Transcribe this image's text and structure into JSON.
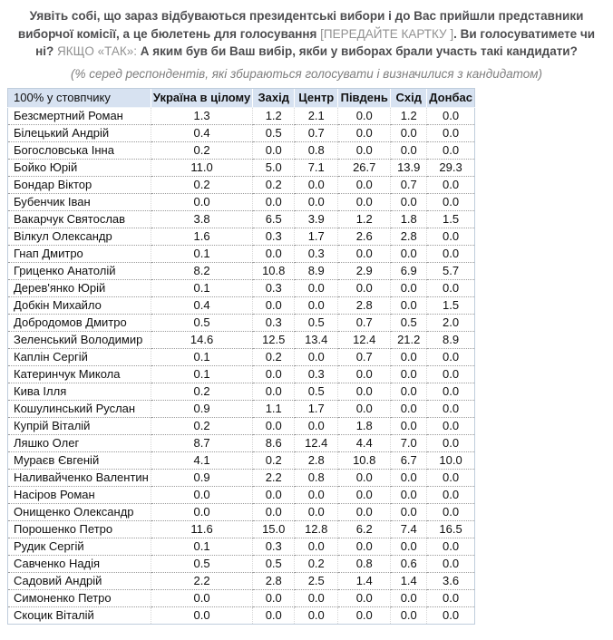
{
  "colors": {
    "table_header_bg": "#d7e2f1",
    "title_text": "#4d4d4f",
    "muted_text": "#919191"
  },
  "question": {
    "segments": [
      {
        "text": "Уявіть собі, що зараз відбуваються президентські вибори і до Вас прийшли представники виборчої комісії, а це бюлетень для голосування ",
        "style": "bold"
      },
      {
        "text": "[ПЕРЕДАЙТЕ КАРТКУ ]",
        "style": "gray"
      },
      {
        "text": ". Ви голосуватимете чи ні? ",
        "style": "bold"
      },
      {
        "text": "ЯКЩО «ТАК»: ",
        "style": "gray"
      },
      {
        "text": "А яким був би Ваш вибір, якби у виборах брали участь такі кандидати?",
        "style": "bold"
      }
    ]
  },
  "subtitle": "(% серед респондентів, які збираються голосувати і визначилися з кандидатом)",
  "table": {
    "columns": [
      "100% у стовпчику",
      "Україна в цілому",
      "Захід",
      "Центр",
      "Південь",
      "Схід",
      "Донбас"
    ],
    "rows": [
      {
        "name": "Безсмертний Роман",
        "values": [
          "1.3",
          "1.2",
          "2.1",
          "0.0",
          "1.2",
          "0.0"
        ]
      },
      {
        "name": "Білецький Андрій",
        "values": [
          "0.4",
          "0.5",
          "0.7",
          "0.0",
          "0.0",
          "0.0"
        ]
      },
      {
        "name": "Богословська Інна",
        "values": [
          "0.2",
          "0.0",
          "0.8",
          "0.0",
          "0.0",
          "0.0"
        ]
      },
      {
        "name": "Бойко Юрій",
        "values": [
          "11.0",
          "5.0",
          "7.1",
          "26.7",
          "13.9",
          "29.3"
        ]
      },
      {
        "name": "Бондар Віктор",
        "values": [
          "0.2",
          "0.2",
          "0.0",
          "0.0",
          "0.7",
          "0.0"
        ]
      },
      {
        "name": "Бубенчик Іван",
        "values": [
          "0.0",
          "0.0",
          "0.0",
          "0.0",
          "0.0",
          "0.0"
        ]
      },
      {
        "name": "Вакарчук Святослав",
        "values": [
          "3.8",
          "6.5",
          "3.9",
          "1.2",
          "1.8",
          "1.5"
        ]
      },
      {
        "name": "Вілкул Олександр",
        "values": [
          "1.6",
          "0.3",
          "1.7",
          "2.6",
          "2.8",
          "0.0"
        ]
      },
      {
        "name": "Гнап Дмитро",
        "values": [
          "0.1",
          "0.0",
          "0.3",
          "0.0",
          "0.0",
          "0.0"
        ]
      },
      {
        "name": "Гриценко Анатолій",
        "values": [
          "8.2",
          "10.8",
          "8.9",
          "2.9",
          "6.9",
          "5.7"
        ]
      },
      {
        "name": "Дерев'янко Юрій",
        "values": [
          "0.1",
          "0.3",
          "0.0",
          "0.0",
          "0.0",
          "0.0"
        ]
      },
      {
        "name": "Добкін Михайло",
        "values": [
          "0.4",
          "0.0",
          "0.0",
          "2.8",
          "0.0",
          "1.5"
        ]
      },
      {
        "name": "Добродомов Дмитро",
        "values": [
          "0.5",
          "0.3",
          "0.5",
          "0.7",
          "0.5",
          "2.0"
        ]
      },
      {
        "name": "Зеленський Володимир",
        "values": [
          "14.6",
          "12.5",
          "13.4",
          "12.4",
          "21.2",
          "8.9"
        ]
      },
      {
        "name": "Каплін Сергій",
        "values": [
          "0.1",
          "0.2",
          "0.0",
          "0.7",
          "0.0",
          "0.0"
        ]
      },
      {
        "name": "Катеринчук Микола",
        "values": [
          "0.1",
          "0.0",
          "0.3",
          "0.0",
          "0.0",
          "0.0"
        ]
      },
      {
        "name": "Кива Ілля",
        "values": [
          "0.2",
          "0.0",
          "0.5",
          "0.0",
          "0.0",
          "0.0"
        ]
      },
      {
        "name": "Кошулинський Руслан",
        "values": [
          "0.9",
          "1.1",
          "1.7",
          "0.0",
          "0.0",
          "0.0"
        ]
      },
      {
        "name": "Купрій Віталій",
        "values": [
          "0.2",
          "0.0",
          "0.0",
          "1.8",
          "0.0",
          "0.0"
        ]
      },
      {
        "name": "Ляшко Олег",
        "values": [
          "8.7",
          "8.6",
          "12.4",
          "4.4",
          "7.0",
          "0.0"
        ]
      },
      {
        "name": "Мураєв Євгеній",
        "values": [
          "4.1",
          "0.2",
          "2.8",
          "10.8",
          "6.7",
          "10.0"
        ]
      },
      {
        "name": "Наливайченко Валентин",
        "values": [
          "0.9",
          "2.2",
          "0.8",
          "0.0",
          "0.0",
          "0.0"
        ]
      },
      {
        "name": "Насіров Роман",
        "values": [
          "0.0",
          "0.0",
          "0.0",
          "0.0",
          "0.0",
          "0.0"
        ]
      },
      {
        "name": "Онищенко Олександр",
        "values": [
          "0.0",
          "0.0",
          "0.0",
          "0.0",
          "0.0",
          "0.0"
        ]
      },
      {
        "name": "Порошенко Петро",
        "values": [
          "11.6",
          "15.0",
          "12.8",
          "6.2",
          "7.4",
          "16.5"
        ]
      },
      {
        "name": "Рудик Сергій",
        "values": [
          "0.1",
          "0.3",
          "0.0",
          "0.0",
          "0.0",
          "0.0"
        ]
      },
      {
        "name": "Савченко Надія",
        "values": [
          "0.5",
          "0.5",
          "0.2",
          "0.8",
          "0.6",
          "0.0"
        ]
      },
      {
        "name": "Садовий Андрій",
        "values": [
          "2.2",
          "2.8",
          "2.5",
          "1.4",
          "1.4",
          "3.6"
        ]
      },
      {
        "name": "Симоненко Петро",
        "values": [
          "0.0",
          "0.0",
          "0.0",
          "0.0",
          "0.0",
          "0.0"
        ]
      },
      {
        "name": "Скоцик Віталій",
        "values": [
          "0.0",
          "0.0",
          "0.0",
          "0.0",
          "0.0",
          "0.0"
        ]
      }
    ]
  }
}
